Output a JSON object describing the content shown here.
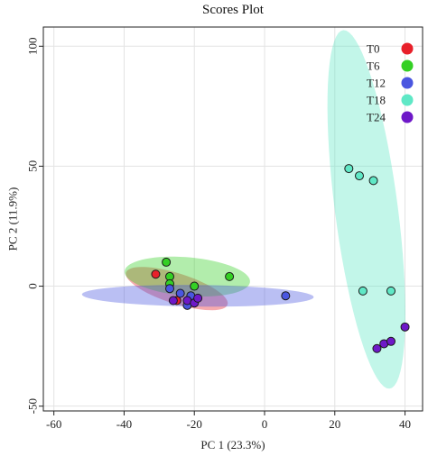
{
  "chart_data": {
    "type": "scatter",
    "title": "Scores Plot",
    "xlabel": "PC 1 (23.3%)",
    "ylabel": "PC 2 (11.9%)",
    "xlim": [
      -63,
      45
    ],
    "ylim": [
      -52,
      108
    ],
    "xticks": [
      -60,
      -40,
      -20,
      0,
      20,
      40
    ],
    "yticks": [
      -50,
      0,
      50,
      100
    ],
    "grid": true,
    "legend_position": "top-right",
    "series": [
      {
        "name": "T0",
        "color": "#e8202a",
        "points": [
          [
            -31,
            5
          ],
          [
            -25,
            -6
          ]
        ],
        "ellipse": {
          "center": [
            -25,
            -1
          ],
          "semi_axes": [
            16,
            6
          ],
          "angle_deg": -27
        }
      },
      {
        "name": "T6",
        "color": "#34d024",
        "points": [
          [
            -28,
            10
          ],
          [
            -27,
            4
          ],
          [
            -27,
            1
          ],
          [
            -20,
            0
          ],
          [
            -10,
            4
          ]
        ],
        "ellipse": {
          "center": [
            -22,
            4
          ],
          "semi_axes": [
            18,
            8
          ],
          "angle_deg": -8
        }
      },
      {
        "name": "T12",
        "color": "#4a56e0",
        "points": [
          [
            -27,
            -1
          ],
          [
            -24,
            -3
          ],
          [
            -22,
            -8
          ],
          [
            -21,
            -4
          ],
          [
            6,
            -4
          ]
        ],
        "ellipse": {
          "center": [
            -19,
            -4
          ],
          "semi_axes": [
            33,
            4.5
          ],
          "angle_deg": -1
        }
      },
      {
        "name": "T18",
        "color": "#5fe8c6",
        "points": [
          [
            24,
            49
          ],
          [
            27,
            46
          ],
          [
            31,
            44
          ],
          [
            28,
            -2
          ],
          [
            36,
            -2
          ]
        ],
        "ellipse": {
          "center": [
            29,
            32
          ],
          "semi_axes": [
            75,
            9
          ],
          "angle_deg": -85
        }
      },
      {
        "name": "T24",
        "color": "#6e18c8",
        "points": [
          [
            -26,
            -6
          ],
          [
            -22,
            -6
          ],
          [
            -20,
            -7
          ],
          [
            -19,
            -5
          ],
          [
            32,
            -26
          ],
          [
            34,
            -24
          ],
          [
            36,
            -23
          ],
          [
            40,
            -17
          ]
        ],
        "ellipse": null
      }
    ]
  }
}
